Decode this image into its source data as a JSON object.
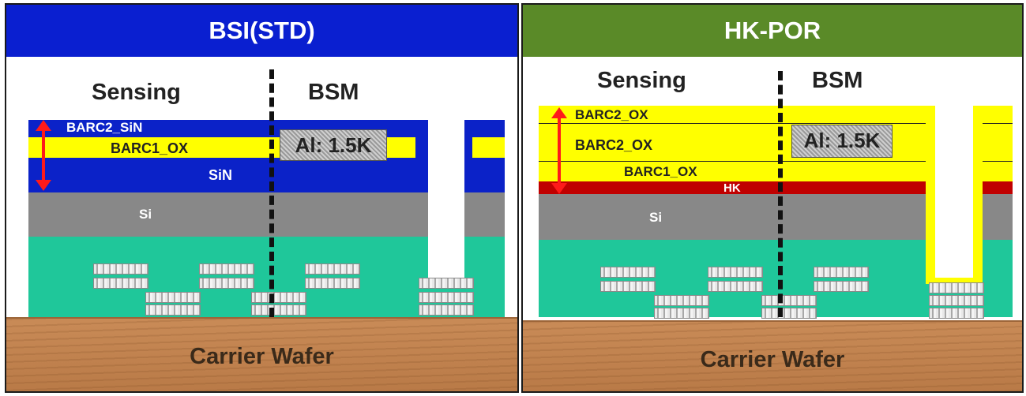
{
  "left_panel": {
    "title": "BSI(STD)",
    "title_color": "#0a1fd0",
    "sensing_label": "Sensing",
    "bsm_label": "BSM",
    "layers": {
      "barc2": "BARC2_SiN",
      "barc1": "BARC1_OX",
      "sin": "SiN",
      "si": "Si"
    },
    "al_label": "Al: 1.5K",
    "wafer_label": "Carrier Wafer"
  },
  "right_panel": {
    "title": "HK-POR",
    "title_color": "#5a8a28",
    "sensing_label": "Sensing",
    "bsm_label": "BSM",
    "layers": {
      "barc2_top": "BARC2_OX",
      "barc2_mid": "BARC2_OX",
      "barc1": "BARC1_OX",
      "hk": "HK",
      "si": "Si"
    },
    "al_label": "Al: 1.5K",
    "wafer_label": "Carrier Wafer"
  },
  "colors": {
    "nitride_blue": "#0b22c8",
    "oxide_yellow": "#ffff00",
    "silicon_gray": "#888888",
    "metal_layer_teal": "#1fc79a",
    "hk_red": "#c00000",
    "arrow_red": "#ff1a1a"
  }
}
